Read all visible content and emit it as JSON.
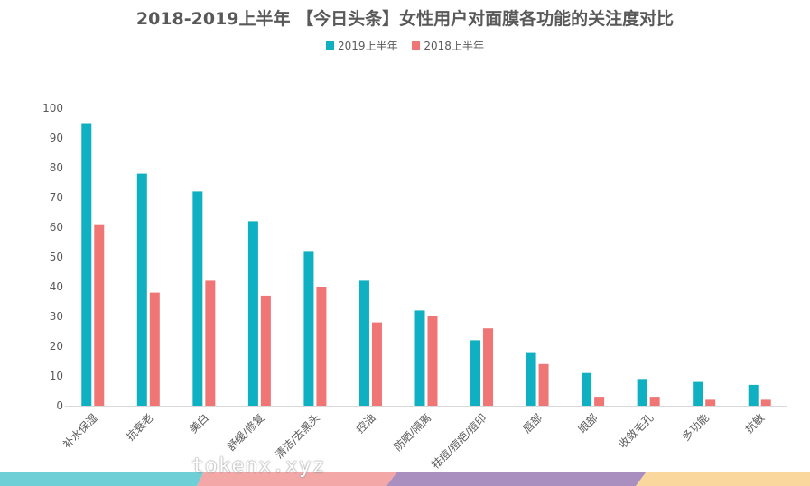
{
  "chart_data": {
    "type": "bar",
    "title": "2018-2019上半年 【今日头条】女性用户对面膜各功能的关注度对比",
    "categories": [
      "补水保湿",
      "抗衰老",
      "美白",
      "舒缓/修复",
      "清洁/去黑头",
      "控油",
      "防晒/隔离",
      "祛痘/痘疤/痘印",
      "唇部",
      "眼部",
      "收敛毛孔",
      "多功能",
      "抗敏"
    ],
    "series": [
      {
        "name": "2019上半年",
        "color": "#0fb0c2",
        "values": [
          95,
          78,
          72,
          62,
          52,
          42,
          32,
          22,
          18,
          11,
          9,
          8,
          7
        ]
      },
      {
        "name": "2018上半年",
        "color": "#f07575",
        "values": [
          61,
          38,
          42,
          37,
          40,
          28,
          30,
          26,
          14,
          3,
          3,
          2,
          2
        ]
      }
    ],
    "ylim": [
      0,
      100
    ],
    "yticks": [
      0,
      10,
      20,
      30,
      40,
      50,
      60,
      70,
      80,
      90,
      100
    ],
    "legend_position": "top",
    "grid": false
  },
  "watermark": "tokenx.xyz",
  "band_colors": [
    "#6fcfd6",
    "#f3a7a7",
    "#a98fc0",
    "#f9d79d"
  ]
}
